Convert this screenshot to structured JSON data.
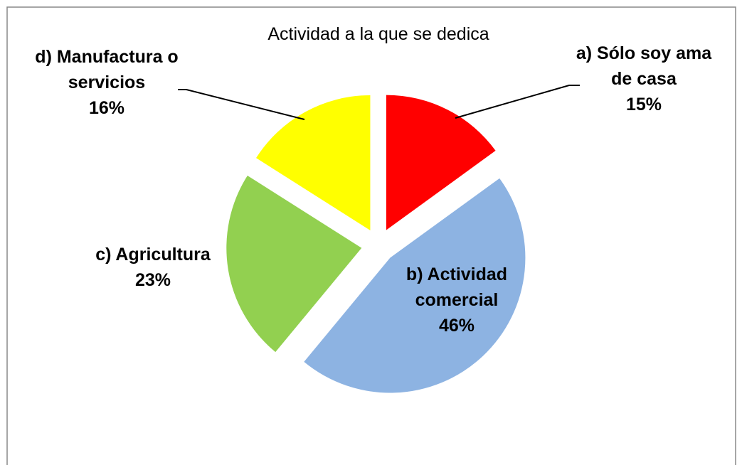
{
  "chart_data": {
    "type": "pie",
    "title": "Actividad a la que se dedica",
    "categories": [
      "a) Sólo soy ama de casa",
      "b) Actividad comercial",
      "c) Agricultura",
      "d) Manufactura o servicios"
    ],
    "values": [
      15,
      46,
      23,
      16
    ],
    "value_labels": [
      "15%",
      "46%",
      "23%",
      "16%"
    ],
    "colors": [
      "#ff0000",
      "#8db3e2",
      "#92d050",
      "#ffff00"
    ]
  }
}
